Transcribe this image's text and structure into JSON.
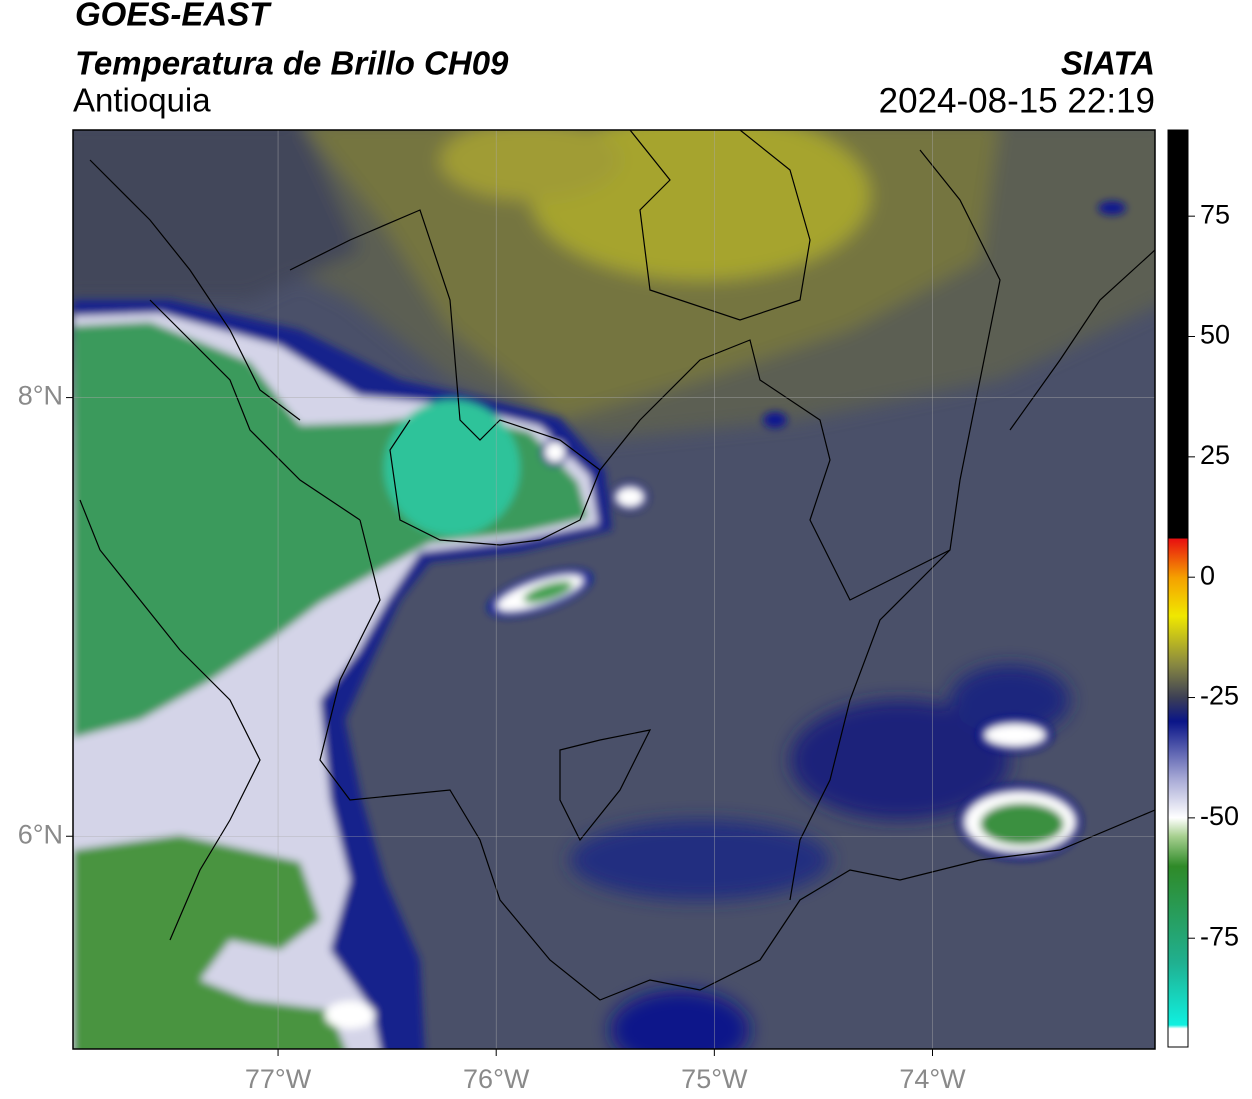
{
  "header": {
    "satellite": "GOES-EAST",
    "product": "Temperatura de Brillo CH09",
    "region": "Antioquia",
    "source": "SIATA",
    "datetime": "2024-08-15 22:19"
  },
  "map": {
    "xlim": [
      -77.94,
      -72.98
    ],
    "ylim": [
      5.03,
      9.22
    ],
    "xticks": [
      {
        "value": -77,
        "label": "77°W"
      },
      {
        "value": -76,
        "label": "76°W"
      },
      {
        "value": -75,
        "label": "75°W"
      },
      {
        "value": -74,
        "label": "74°W"
      }
    ],
    "yticks": [
      {
        "value": 8,
        "label": "8°N"
      },
      {
        "value": 6,
        "label": "6°N"
      }
    ],
    "grid": true
  },
  "colorbar": {
    "lim": [
      -97.6,
      92.9
    ],
    "ticks": [
      75,
      50,
      25,
      0,
      -25,
      -50,
      -75
    ]
  }
}
